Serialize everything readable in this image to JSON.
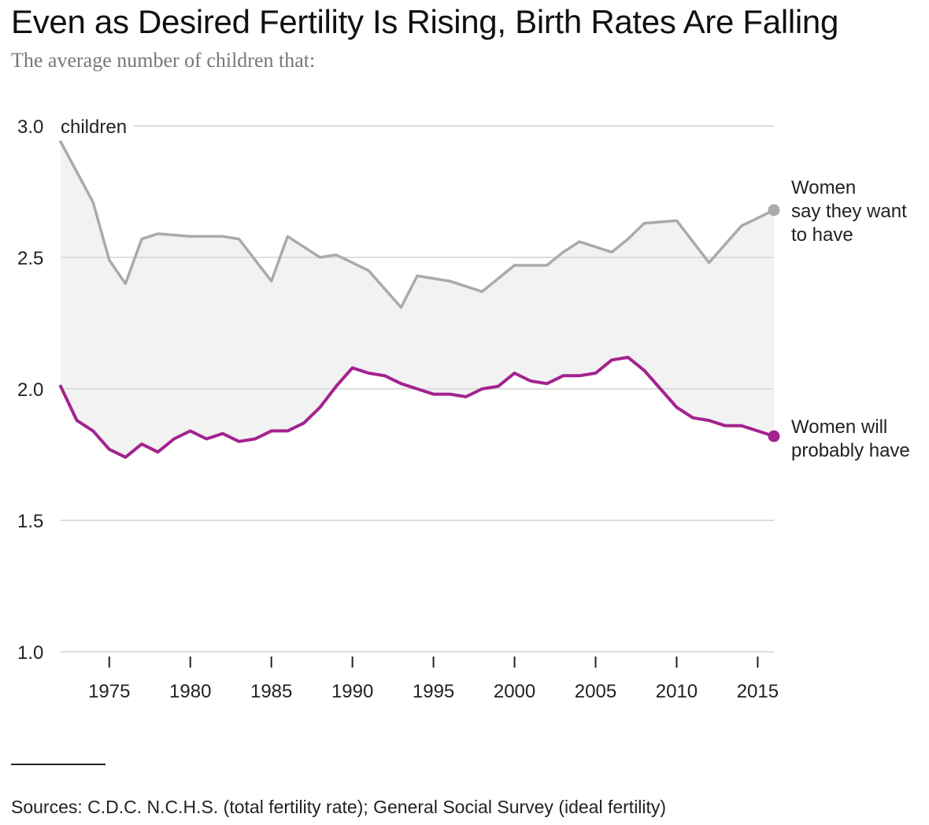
{
  "chart_data": {
    "type": "line",
    "title": "Even as Desired Fertility Is Rising, Birth Rates Are Falling",
    "subtitle": "The average number of children that:",
    "ylabel_unit": "children",
    "ylim": [
      1.0,
      3.0
    ],
    "yticks": [
      {
        "value": 1.0,
        "label": "1.0"
      },
      {
        "value": 1.5,
        "label": "1.5"
      },
      {
        "value": 2.0,
        "label": "2.0"
      },
      {
        "value": 2.5,
        "label": "2.5"
      },
      {
        "value": 3.0,
        "label": "3.0"
      }
    ],
    "xlim": [
      1972,
      2016
    ],
    "xticks": [
      {
        "value": 1975,
        "label": "1975"
      },
      {
        "value": 1980,
        "label": "1980"
      },
      {
        "value": 1985,
        "label": "1985"
      },
      {
        "value": 1990,
        "label": "1990"
      },
      {
        "value": 1995,
        "label": "1995"
      },
      {
        "value": 2000,
        "label": "2000"
      },
      {
        "value": 2005,
        "label": "2005"
      },
      {
        "value": 2010,
        "label": "2010"
      },
      {
        "value": 2015,
        "label": "2015"
      }
    ],
    "series": [
      {
        "name": "desired",
        "label_lines": [
          "Women",
          "say they want",
          "to have"
        ],
        "color": "#aaaaaa",
        "x": [
          1972,
          1974,
          1975,
          1976,
          1977,
          1978,
          1980,
          1982,
          1983,
          1985,
          1986,
          1988,
          1989,
          1990,
          1991,
          1993,
          1994,
          1996,
          1998,
          2000,
          2002,
          2003,
          2004,
          2006,
          2007,
          2008,
          2010,
          2012,
          2014,
          2016
        ],
        "values": [
          2.94,
          2.71,
          2.49,
          2.4,
          2.57,
          2.59,
          2.58,
          2.58,
          2.57,
          2.41,
          2.58,
          2.5,
          2.51,
          2.48,
          2.45,
          2.31,
          2.43,
          2.41,
          2.37,
          2.47,
          2.47,
          2.52,
          2.56,
          2.52,
          2.57,
          2.63,
          2.64,
          2.48,
          2.62,
          2.68
        ]
      },
      {
        "name": "actual",
        "label_lines": [
          "Women will",
          "probably have"
        ],
        "color": "#a3238e",
        "x": [
          1972,
          1973,
          1974,
          1975,
          1976,
          1977,
          1978,
          1979,
          1980,
          1981,
          1982,
          1983,
          1984,
          1985,
          1986,
          1987,
          1988,
          1989,
          1990,
          1991,
          1992,
          1993,
          1994,
          1995,
          1996,
          1997,
          1998,
          1999,
          2000,
          2001,
          2002,
          2003,
          2004,
          2005,
          2006,
          2007,
          2008,
          2009,
          2010,
          2011,
          2012,
          2013,
          2014,
          2015,
          2016
        ],
        "values": [
          2.01,
          1.88,
          1.84,
          1.77,
          1.74,
          1.79,
          1.76,
          1.81,
          1.84,
          1.81,
          1.83,
          1.8,
          1.81,
          1.84,
          1.84,
          1.87,
          1.93,
          2.01,
          2.08,
          2.06,
          2.05,
          2.02,
          2.0,
          1.98,
          1.98,
          1.97,
          2.0,
          2.01,
          2.06,
          2.03,
          2.02,
          2.05,
          2.05,
          2.06,
          2.11,
          2.12,
          2.07,
          2.0,
          1.93,
          1.89,
          1.88,
          1.86,
          1.86,
          1.84,
          1.82
        ]
      }
    ]
  },
  "sources": "Sources: C.D.C. N.C.H.S. (total fertility rate); General Social Survey (ideal fertility)",
  "colors": {
    "fill": "#f2f2f2",
    "grid": "#dddddd",
    "axis": "#222222"
  }
}
